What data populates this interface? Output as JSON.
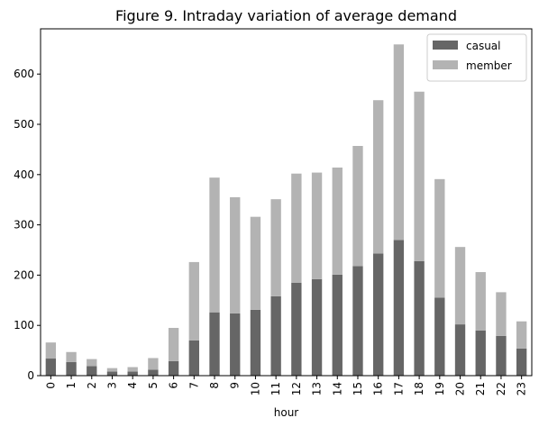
{
  "chart_data": {
    "type": "bar",
    "stacked": true,
    "title": "Figure 9. Intraday variation of average demand",
    "xlabel": "hour",
    "ylabel": "",
    "ylim": [
      0,
      690
    ],
    "yticks": [
      0,
      100,
      200,
      300,
      400,
      500,
      600
    ],
    "categories": [
      "0",
      "1",
      "2",
      "3",
      "4",
      "5",
      "6",
      "7",
      "8",
      "9",
      "10",
      "11",
      "12",
      "13",
      "14",
      "15",
      "16",
      "17",
      "18",
      "19",
      "20",
      "21",
      "22",
      "23"
    ],
    "series": [
      {
        "name": "casual",
        "color": "#666666",
        "values": [
          34,
          27,
          19,
          8,
          8,
          12,
          29,
          70,
          126,
          124,
          131,
          158,
          185,
          192,
          201,
          218,
          243,
          270,
          228,
          155,
          102,
          90,
          79,
          54
        ]
      },
      {
        "name": "member",
        "color": "#b3b3b3",
        "values": [
          32,
          20,
          14,
          7,
          9,
          23,
          66,
          156,
          268,
          231,
          185,
          193,
          217,
          212,
          213,
          239,
          305,
          389,
          337,
          236,
          154,
          116,
          87,
          54
        ]
      }
    ],
    "legend_position": "top-right",
    "grid": false
  }
}
